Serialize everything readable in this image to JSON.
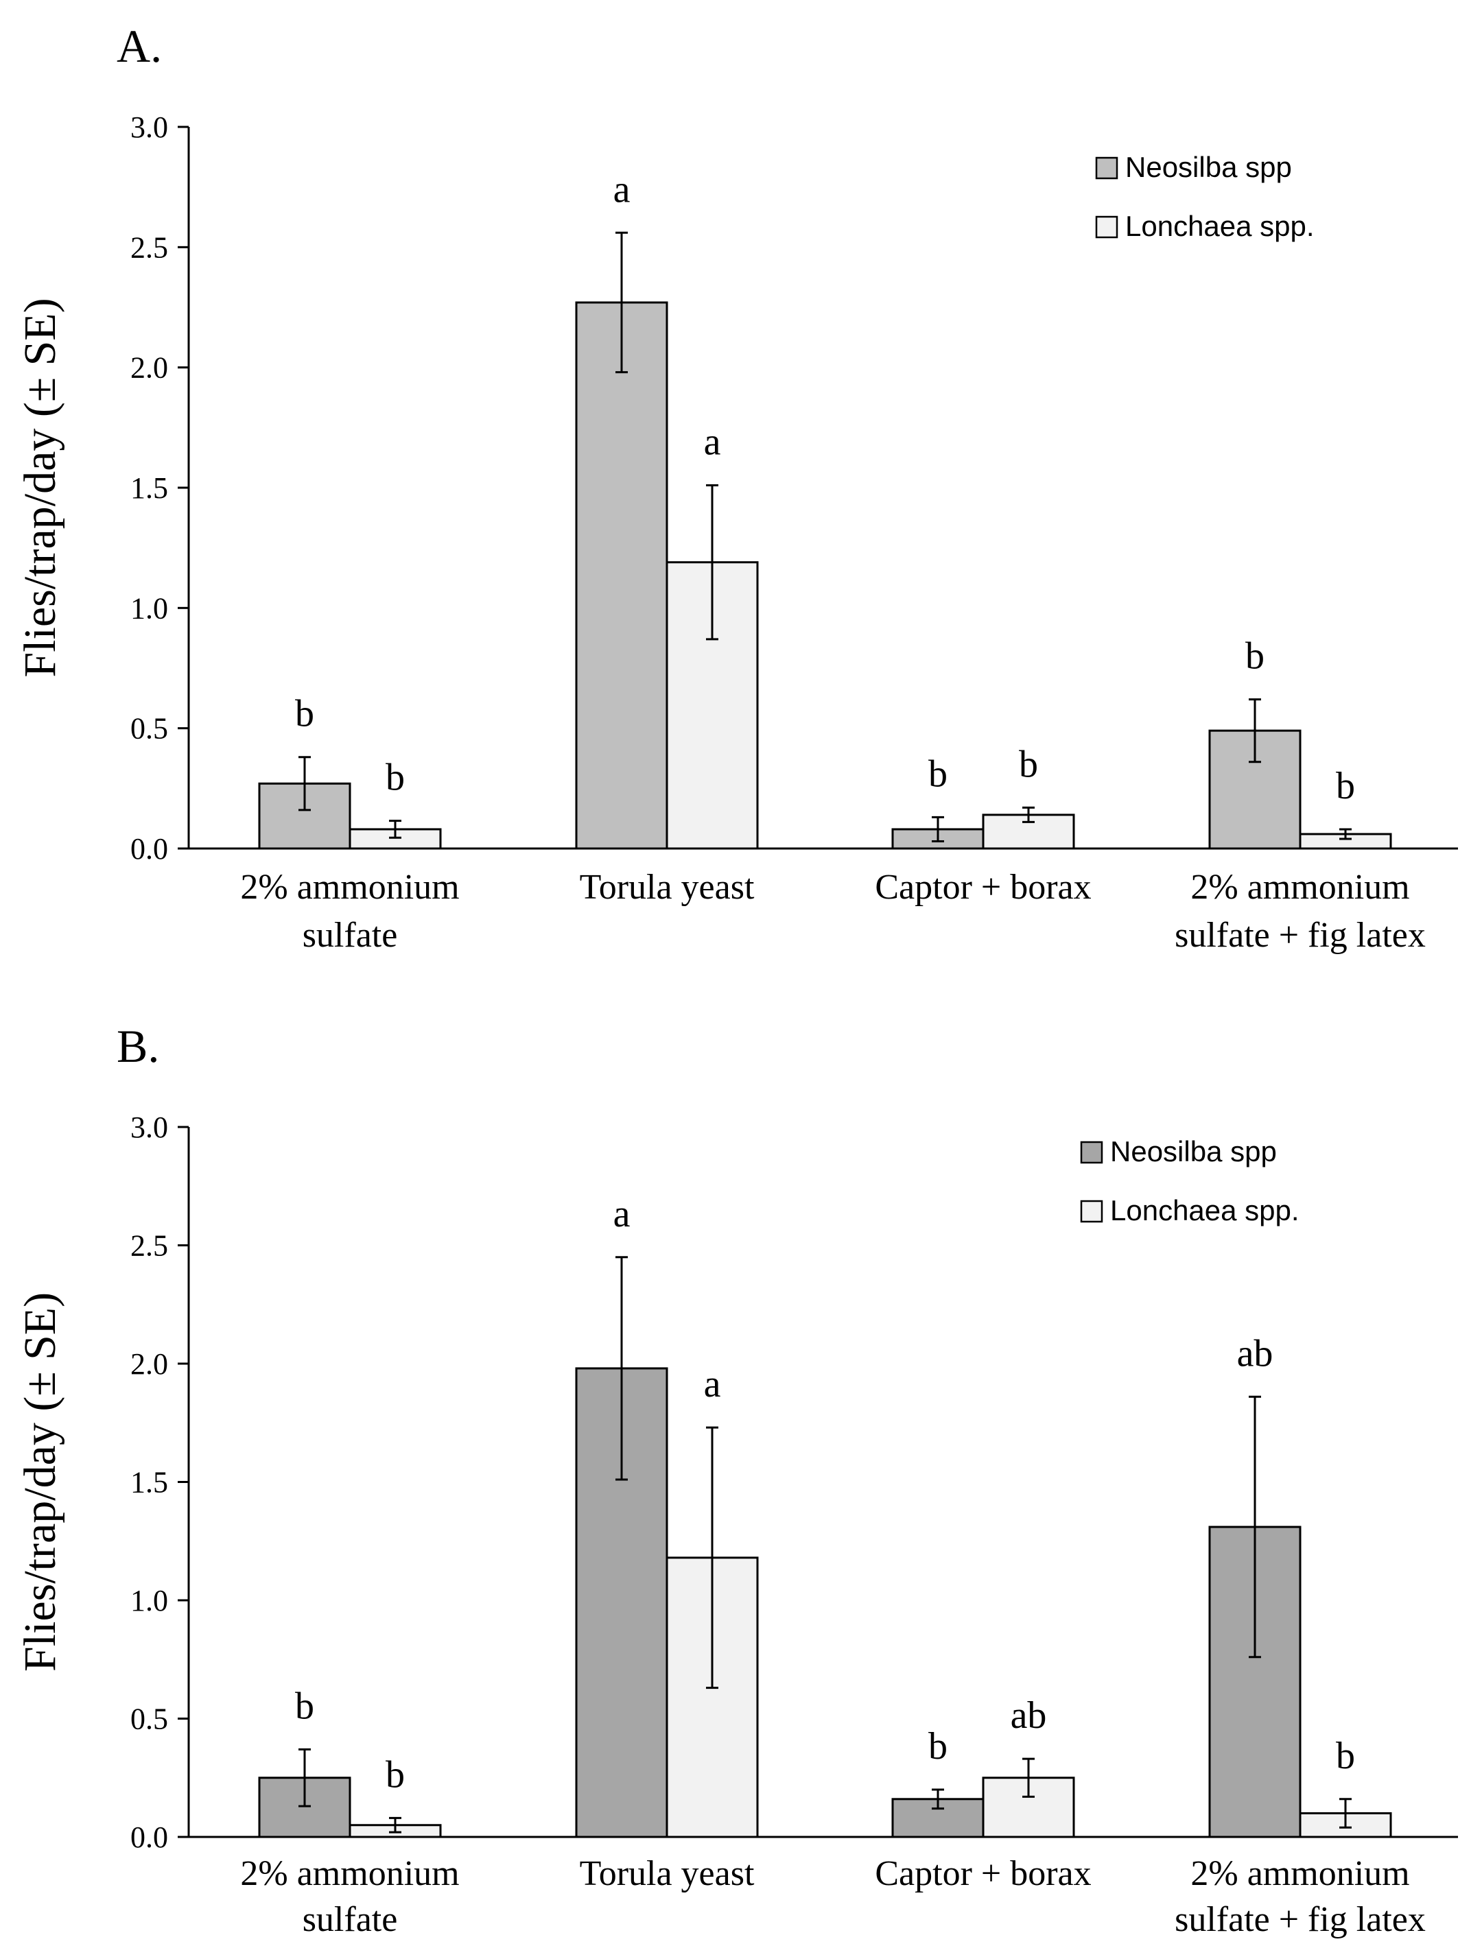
{
  "chart_data": [
    {
      "type": "bar",
      "panel_label": "A.",
      "ylabel": "Flies/trap/day (± SE)",
      "ylim": [
        0,
        3
      ],
      "yticks": [
        "0.0",
        "0.5",
        "1.0",
        "1.5",
        "2.0",
        "2.5",
        "3.0"
      ],
      "categories": [
        [
          "2% ammonium",
          "sulfate"
        ],
        [
          "Torula yeast"
        ],
        [
          "Captor + borax"
        ],
        [
          "2% ammonium",
          "sulfate + fig latex"
        ]
      ],
      "legend_position": "top-right",
      "series": [
        {
          "name": "Neosilba spp",
          "color": "#bfbfbf",
          "values": [
            0.27,
            2.27,
            0.08,
            0.49
          ],
          "errors": [
            0.11,
            0.29,
            0.05,
            0.13
          ],
          "letters": [
            "b",
            "a",
            "b",
            "b"
          ]
        },
        {
          "name": "Lonchaea spp.",
          "color": "#f2f2f2",
          "values": [
            0.08,
            1.19,
            0.14,
            0.06
          ],
          "errors": [
            0.035,
            0.32,
            0.03,
            0.02
          ],
          "letters": [
            "b",
            "a",
            "b",
            "b"
          ]
        }
      ]
    },
    {
      "type": "bar",
      "panel_label": "B.",
      "ylabel": "Flies/trap/day (± SE)",
      "ylim": [
        0,
        3
      ],
      "yticks": [
        "0.0",
        "0.5",
        "1.0",
        "1.5",
        "2.0",
        "2.5",
        "3.0"
      ],
      "categories": [
        [
          "2% ammonium",
          "sulfate"
        ],
        [
          "Torula yeast"
        ],
        [
          "Captor + borax"
        ],
        [
          "2% ammonium",
          "sulfate + fig latex"
        ]
      ],
      "legend_position": "top-right",
      "series": [
        {
          "name": "Neosilba spp",
          "color": "#a6a6a6",
          "values": [
            0.25,
            1.98,
            0.16,
            1.31
          ],
          "errors": [
            0.12,
            0.47,
            0.04,
            0.55
          ],
          "letters": [
            "b",
            "a",
            "b",
            "ab"
          ]
        },
        {
          "name": "Lonchaea spp.",
          "color": "#f2f2f2",
          "values": [
            0.05,
            1.18,
            0.25,
            0.1
          ],
          "errors": [
            0.03,
            0.55,
            0.08,
            0.06
          ],
          "letters": [
            "b",
            "a",
            "ab",
            "b"
          ]
        }
      ]
    }
  ]
}
